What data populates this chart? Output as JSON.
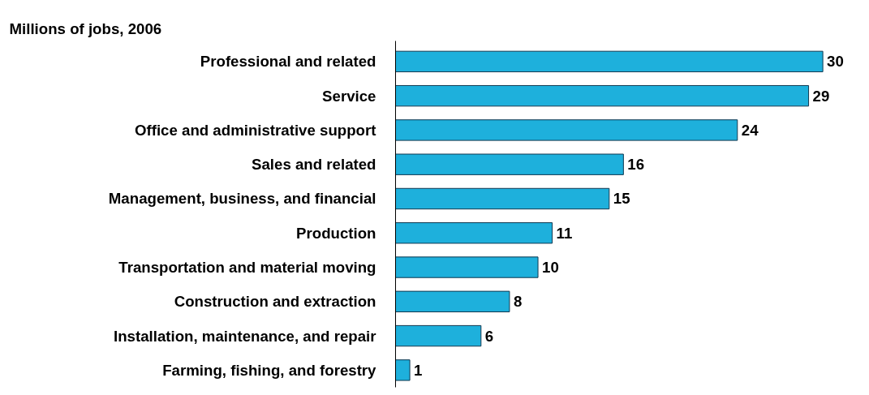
{
  "chart_data": {
    "type": "bar",
    "orientation": "horizontal",
    "title": "Millions of jobs, 2006",
    "categories": [
      "Professional and related",
      "Service",
      "Office and administrative support",
      "Sales and related",
      "Management, business, and financial",
      "Production",
      "Transportation and material moving",
      "Construction and extraction",
      "Installation, maintenance, and repair",
      "Farming, fishing, and forestry"
    ],
    "values": [
      30,
      29,
      24,
      16,
      15,
      11,
      10,
      8,
      6,
      1
    ],
    "color": "#1eb0dc",
    "data_labels": true,
    "grid": false,
    "tick_labels": "y"
  }
}
